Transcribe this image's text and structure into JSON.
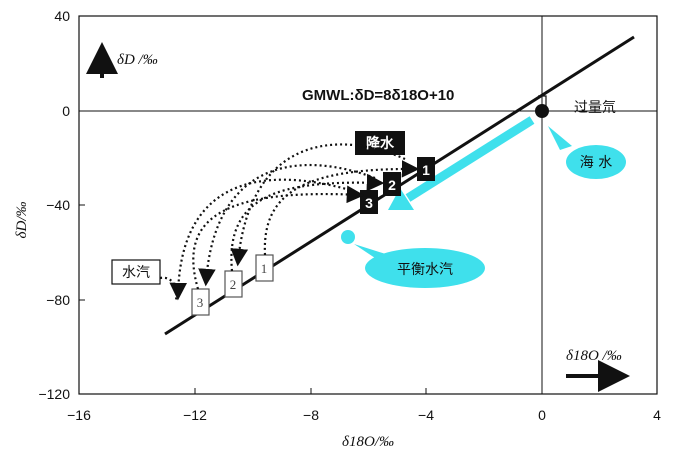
{
  "axes": {
    "x_title": "δ18O/‰",
    "y_title": "δD/‰",
    "y_title_upper": "δD /‰",
    "x_title_right": "δ18O /‰",
    "x_ticks": [
      "−16",
      "−12",
      "−8",
      "−4",
      "0",
      "4"
    ],
    "y_ticks": [
      "40",
      "0",
      "−40",
      "−80",
      "−120"
    ]
  },
  "equation": "GMWL:δD=8δ18O+10",
  "labels": {
    "excess": "过量氘",
    "seawater": "海 水",
    "equilibrium_vapor": "平衡水汽",
    "precipitation": "降水",
    "vapor": "水汽"
  },
  "numbers": {
    "precip": [
      "1",
      "2",
      "3"
    ],
    "vapor": [
      "1",
      "2",
      "3"
    ]
  },
  "colors": {
    "cyan": "#3fe0ec",
    "black": "#111111"
  }
}
